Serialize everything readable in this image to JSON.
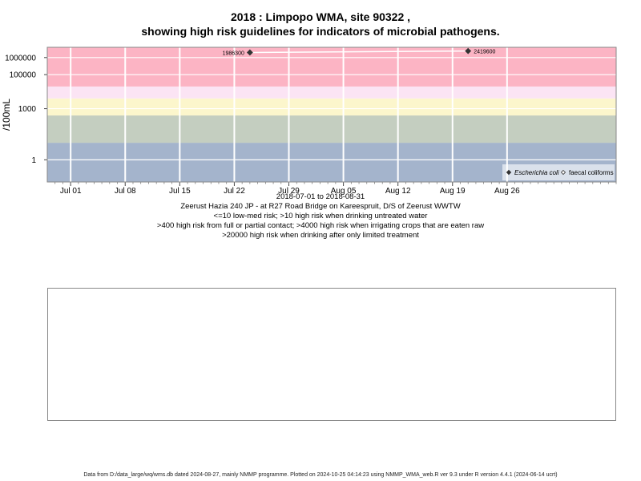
{
  "chart_data": {
    "type": "scatter",
    "title": "2018 : Limpopo WMA, site 90322 ,",
    "subtitle": "showing high risk guidelines for indicators of microbial pathogens.",
    "ylabel": "/100mL",
    "y_scale": "log",
    "ylim": [
      0.05,
      4000000
    ],
    "yticks": [
      {
        "value": 1,
        "label": "1"
      },
      {
        "value": 1000,
        "label": "1000"
      },
      {
        "value": 100000,
        "label": "100000"
      },
      {
        "value": 1000000,
        "label": "1000000"
      }
    ],
    "xlim": [
      "2018-06-28",
      "2018-09-09"
    ],
    "xticks": [
      {
        "date": "2018-07-01",
        "label": "Jul 01"
      },
      {
        "date": "2018-07-08",
        "label": "Jul 08"
      },
      {
        "date": "2018-07-15",
        "label": "Jul 15"
      },
      {
        "date": "2018-07-22",
        "label": "Jul 22"
      },
      {
        "date": "2018-07-29",
        "label": "Jul 29"
      },
      {
        "date": "2018-08-05",
        "label": "Aug 05"
      },
      {
        "date": "2018-08-12",
        "label": "Aug 12"
      },
      {
        "date": "2018-08-19",
        "label": "Aug 19"
      },
      {
        "date": "2018-08-26",
        "label": "Aug 26"
      }
    ],
    "date_range_label": "2018-07-01 to 2018-08-31",
    "bands": [
      {
        "from": 0.05,
        "to": 10,
        "color": "#a4b4cc"
      },
      {
        "from": 10,
        "to": 400,
        "color": "#c4cec0"
      },
      {
        "from": 400,
        "to": 4000,
        "color": "#fcf6cc"
      },
      {
        "from": 4000,
        "to": 20000,
        "color": "#fbe4f4"
      },
      {
        "from": 20000,
        "to": 4000000,
        "color": "#fcb4c4"
      }
    ],
    "series": [
      {
        "name": "Escherichia coli",
        "marker": "filled-diamond",
        "color": "#333333",
        "points": [
          {
            "date": "2018-07-24",
            "value": 1986300,
            "label": "1986300"
          },
          {
            "date": "2018-08-21",
            "value": 2419600,
            "label": "2419600"
          }
        ]
      },
      {
        "name": "faecal coliforms",
        "marker": "open-diamond",
        "color": "#333333",
        "points": []
      }
    ],
    "legend_position": "bottom-right",
    "grid": true
  },
  "captions": {
    "site": "Zeerust Hazia 240 JP - at R27 Road Bridge on Kareespruit, D/S of Zeerust WWTW",
    "line1": "<=10 low-med risk; >10 high risk when drinking untreated water",
    "line2": ">400 high risk from full or partial contact; >4000 high risk when irrigating crops that are eaten raw",
    "line3": ">20000 high risk when drinking after only limited treatment"
  },
  "footer": "Data from D:/data_large/wq/wms.db dated 2024-08-27, mainly NMMP programme. Plotted on 2024-10-25 04:14:23 using NMMP_WMA_web.R ver 9.3 under R version 4.4.1 (2024-06-14 ucrt)"
}
